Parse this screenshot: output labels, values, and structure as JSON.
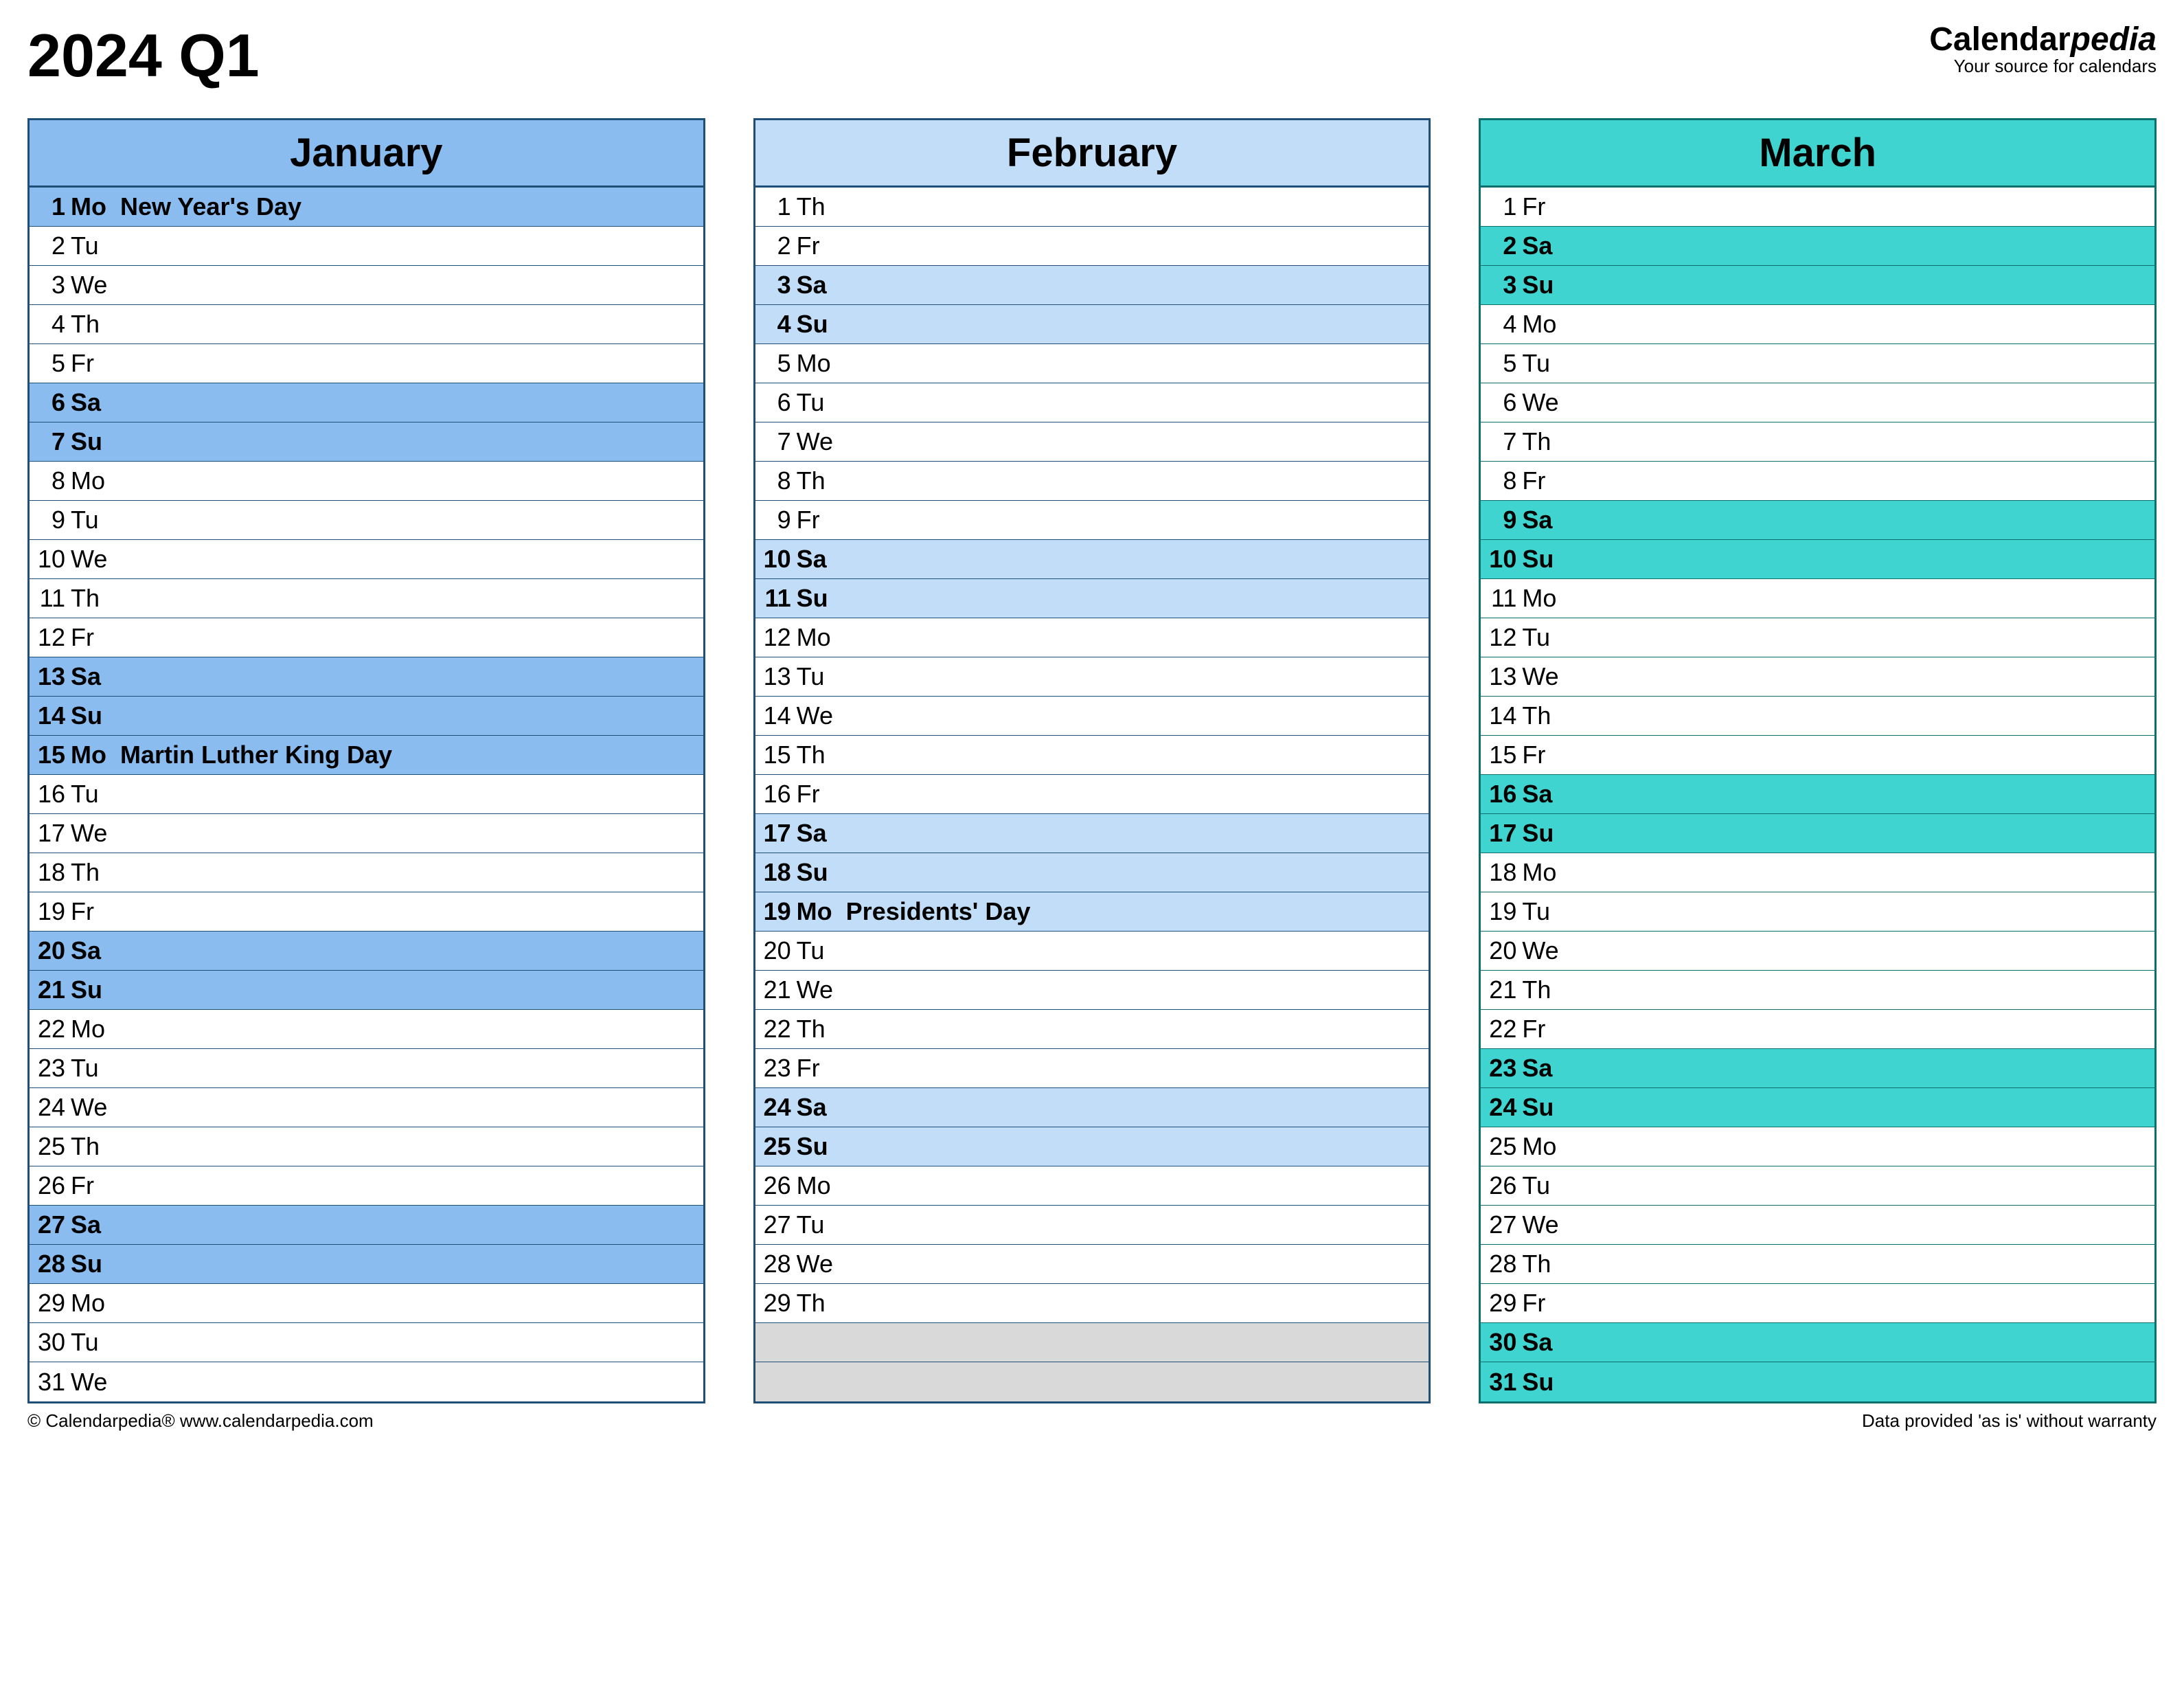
{
  "title": "2024 Q1",
  "brand": {
    "name_prefix": "Calendar",
    "name_suffix": "pedia",
    "tagline": "Your source for calendars"
  },
  "footer": {
    "copyright": "© Calendarpedia®   www.calendarpedia.com",
    "disclaimer": "Data provided 'as is' without warranty"
  },
  "layout": {
    "row_count": 31,
    "blank_color": "#d9d9d9",
    "border_width": 3
  },
  "months": [
    {
      "name": "January",
      "border_color": "#1f4e79",
      "header_bg": "#8bbcf0",
      "highlight_bg": "#8bbcf0",
      "days": [
        {
          "num": 1,
          "dow": "Mo",
          "event": "New Year's Day",
          "hl": true
        },
        {
          "num": 2,
          "dow": "Tu"
        },
        {
          "num": 3,
          "dow": "We"
        },
        {
          "num": 4,
          "dow": "Th"
        },
        {
          "num": 5,
          "dow": "Fr"
        },
        {
          "num": 6,
          "dow": "Sa",
          "hl": true
        },
        {
          "num": 7,
          "dow": "Su",
          "hl": true
        },
        {
          "num": 8,
          "dow": "Mo"
        },
        {
          "num": 9,
          "dow": "Tu"
        },
        {
          "num": 10,
          "dow": "We"
        },
        {
          "num": 11,
          "dow": "Th"
        },
        {
          "num": 12,
          "dow": "Fr"
        },
        {
          "num": 13,
          "dow": "Sa",
          "hl": true
        },
        {
          "num": 14,
          "dow": "Su",
          "hl": true
        },
        {
          "num": 15,
          "dow": "Mo",
          "event": "Martin Luther King Day",
          "hl": true
        },
        {
          "num": 16,
          "dow": "Tu"
        },
        {
          "num": 17,
          "dow": "We"
        },
        {
          "num": 18,
          "dow": "Th"
        },
        {
          "num": 19,
          "dow": "Fr"
        },
        {
          "num": 20,
          "dow": "Sa",
          "hl": true
        },
        {
          "num": 21,
          "dow": "Su",
          "hl": true
        },
        {
          "num": 22,
          "dow": "Mo"
        },
        {
          "num": 23,
          "dow": "Tu"
        },
        {
          "num": 24,
          "dow": "We"
        },
        {
          "num": 25,
          "dow": "Th"
        },
        {
          "num": 26,
          "dow": "Fr"
        },
        {
          "num": 27,
          "dow": "Sa",
          "hl": true
        },
        {
          "num": 28,
          "dow": "Su",
          "hl": true
        },
        {
          "num": 29,
          "dow": "Mo"
        },
        {
          "num": 30,
          "dow": "Tu"
        },
        {
          "num": 31,
          "dow": "We"
        }
      ]
    },
    {
      "name": "February",
      "border_color": "#1f4e79",
      "header_bg": "#c1ddf7",
      "highlight_bg": "#c1ddf7",
      "days": [
        {
          "num": 1,
          "dow": "Th"
        },
        {
          "num": 2,
          "dow": "Fr"
        },
        {
          "num": 3,
          "dow": "Sa",
          "hl": true
        },
        {
          "num": 4,
          "dow": "Su",
          "hl": true
        },
        {
          "num": 5,
          "dow": "Mo"
        },
        {
          "num": 6,
          "dow": "Tu"
        },
        {
          "num": 7,
          "dow": "We"
        },
        {
          "num": 8,
          "dow": "Th"
        },
        {
          "num": 9,
          "dow": "Fr"
        },
        {
          "num": 10,
          "dow": "Sa",
          "hl": true
        },
        {
          "num": 11,
          "dow": "Su",
          "hl": true
        },
        {
          "num": 12,
          "dow": "Mo"
        },
        {
          "num": 13,
          "dow": "Tu"
        },
        {
          "num": 14,
          "dow": "We"
        },
        {
          "num": 15,
          "dow": "Th"
        },
        {
          "num": 16,
          "dow": "Fr"
        },
        {
          "num": 17,
          "dow": "Sa",
          "hl": true
        },
        {
          "num": 18,
          "dow": "Su",
          "hl": true
        },
        {
          "num": 19,
          "dow": "Mo",
          "event": "Presidents' Day",
          "hl": true
        },
        {
          "num": 20,
          "dow": "Tu"
        },
        {
          "num": 21,
          "dow": "We"
        },
        {
          "num": 22,
          "dow": "Th"
        },
        {
          "num": 23,
          "dow": "Fr"
        },
        {
          "num": 24,
          "dow": "Sa",
          "hl": true
        },
        {
          "num": 25,
          "dow": "Su",
          "hl": true
        },
        {
          "num": 26,
          "dow": "Mo"
        },
        {
          "num": 27,
          "dow": "Tu"
        },
        {
          "num": 28,
          "dow": "We"
        },
        {
          "num": 29,
          "dow": "Th"
        }
      ]
    },
    {
      "name": "March",
      "border_color": "#0d706f",
      "header_bg": "#3fd4cf",
      "highlight_bg": "#3fd4cf",
      "days": [
        {
          "num": 1,
          "dow": "Fr"
        },
        {
          "num": 2,
          "dow": "Sa",
          "hl": true
        },
        {
          "num": 3,
          "dow": "Su",
          "hl": true
        },
        {
          "num": 4,
          "dow": "Mo"
        },
        {
          "num": 5,
          "dow": "Tu"
        },
        {
          "num": 6,
          "dow": "We"
        },
        {
          "num": 7,
          "dow": "Th"
        },
        {
          "num": 8,
          "dow": "Fr"
        },
        {
          "num": 9,
          "dow": "Sa",
          "hl": true
        },
        {
          "num": 10,
          "dow": "Su",
          "hl": true
        },
        {
          "num": 11,
          "dow": "Mo"
        },
        {
          "num": 12,
          "dow": "Tu"
        },
        {
          "num": 13,
          "dow": "We"
        },
        {
          "num": 14,
          "dow": "Th"
        },
        {
          "num": 15,
          "dow": "Fr"
        },
        {
          "num": 16,
          "dow": "Sa",
          "hl": true
        },
        {
          "num": 17,
          "dow": "Su",
          "hl": true
        },
        {
          "num": 18,
          "dow": "Mo"
        },
        {
          "num": 19,
          "dow": "Tu"
        },
        {
          "num": 20,
          "dow": "We"
        },
        {
          "num": 21,
          "dow": "Th"
        },
        {
          "num": 22,
          "dow": "Fr"
        },
        {
          "num": 23,
          "dow": "Sa",
          "hl": true
        },
        {
          "num": 24,
          "dow": "Su",
          "hl": true
        },
        {
          "num": 25,
          "dow": "Mo"
        },
        {
          "num": 26,
          "dow": "Tu"
        },
        {
          "num": 27,
          "dow": "We"
        },
        {
          "num": 28,
          "dow": "Th"
        },
        {
          "num": 29,
          "dow": "Fr"
        },
        {
          "num": 30,
          "dow": "Sa",
          "hl": true
        },
        {
          "num": 31,
          "dow": "Su",
          "hl": true
        }
      ]
    }
  ]
}
